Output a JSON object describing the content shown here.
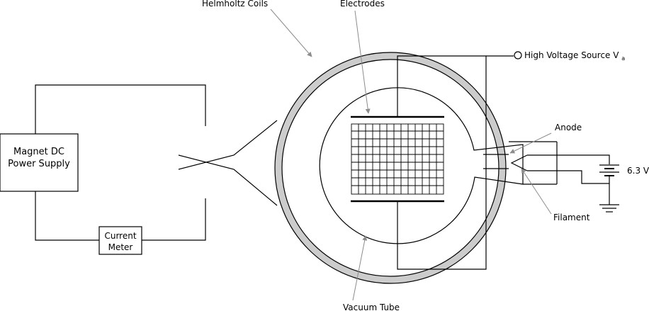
{
  "labels": {
    "helmholtz_coils": "Helmholtz Coils",
    "electrodes": "Electrodes",
    "high_voltage_source": "High Voltage Source V",
    "high_voltage_subscript": "a",
    "anode": "Anode",
    "filament": "Filament",
    "vacuum_tube": "Vacuum Tube",
    "supply_voltage": "6.3 V",
    "magnet_supply_line1": "Magnet DC",
    "magnet_supply_line2": "Power Supply",
    "current_meter_line1": "Current",
    "current_meter_line2": "Meter"
  },
  "colors": {
    "coil_fill": "#cccccc",
    "line": "#000000",
    "pointer": "#8c8c8c"
  }
}
